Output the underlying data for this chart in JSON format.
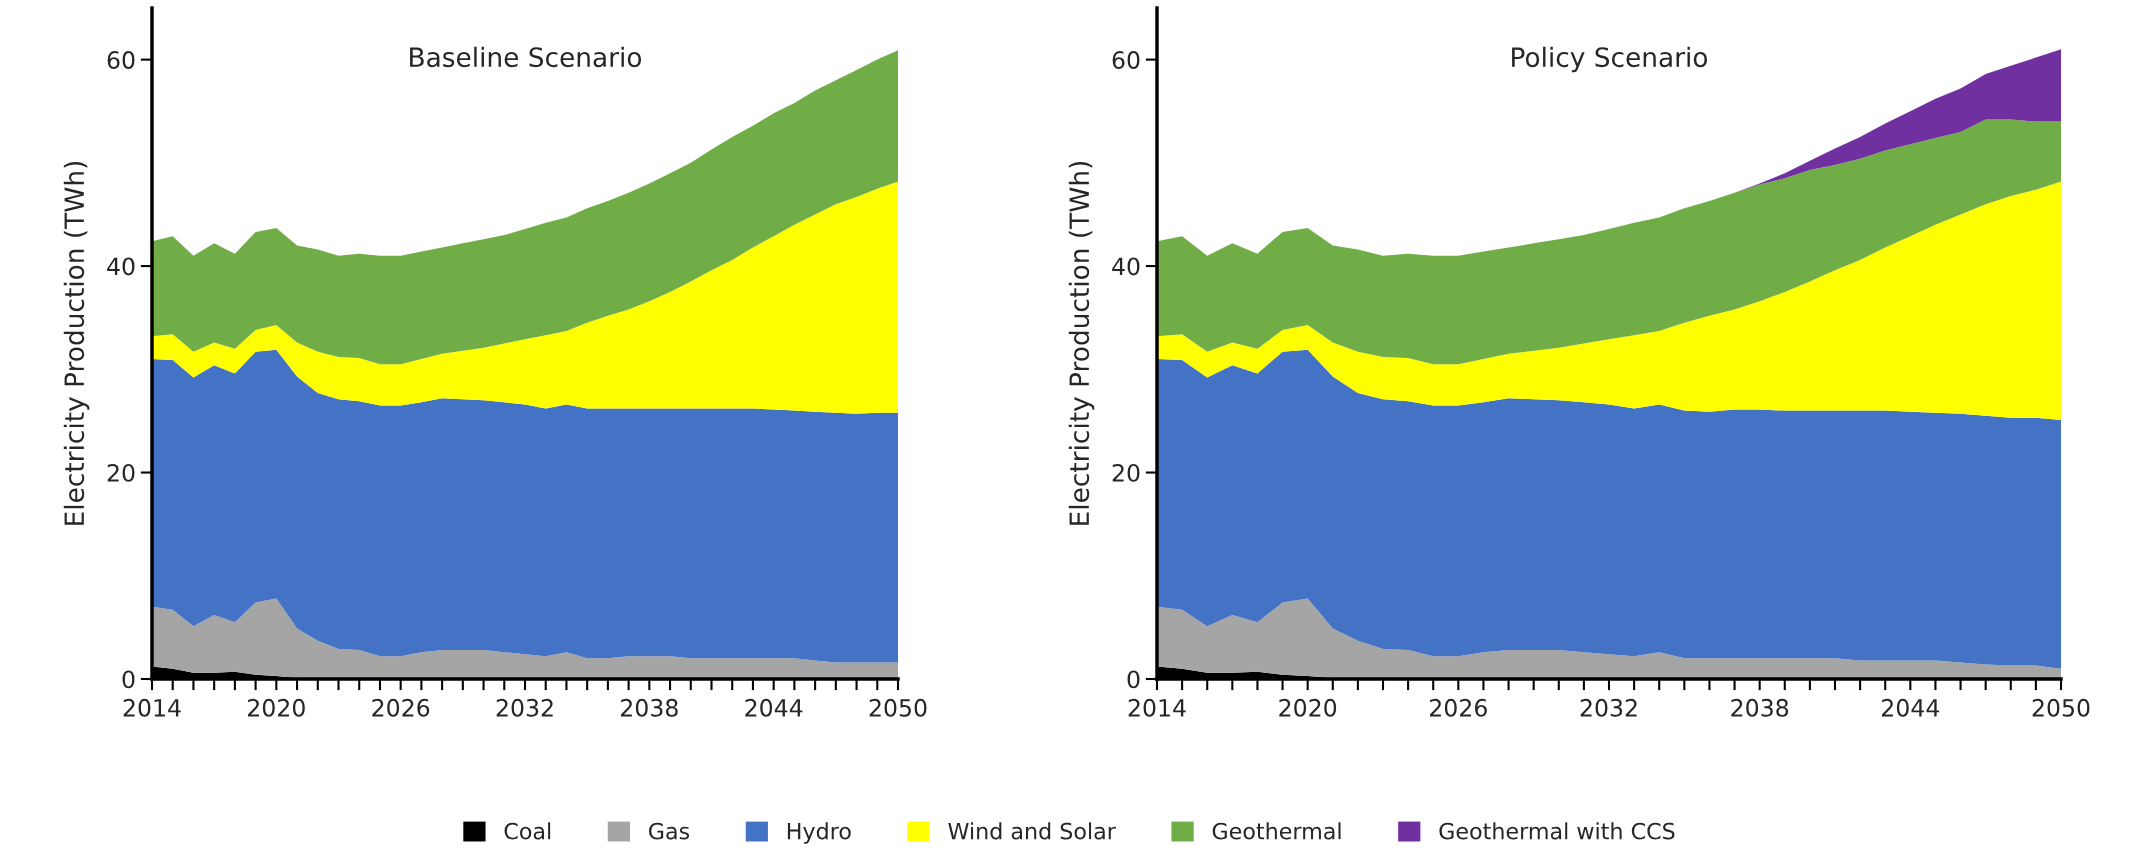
{
  "chart_data": [
    {
      "type": "area",
      "stacked": true,
      "title": "Baseline Scenario",
      "ylabel": "Electricity Production (TWh)",
      "legend": "bottom",
      "x": [
        2014,
        2015,
        2016,
        2017,
        2018,
        2019,
        2020,
        2021,
        2022,
        2023,
        2024,
        2025,
        2026,
        2027,
        2028,
        2029,
        2030,
        2031,
        2032,
        2033,
        2034,
        2035,
        2036,
        2037,
        2038,
        2039,
        2040,
        2041,
        2042,
        2043,
        2044,
        2045,
        2046,
        2047,
        2048,
        2049,
        2050
      ],
      "xlim": [
        2014,
        2050
      ],
      "xticks": [
        2014,
        {
          "value": 2015,
          "label": null
        },
        {
          "value": 2016,
          "label": null
        },
        {
          "value": 2017,
          "label": null
        },
        {
          "value": 2018,
          "label": null
        },
        {
          "value": 2019,
          "label": null
        },
        2020,
        {
          "value": 2021,
          "label": null
        },
        {
          "value": 2022,
          "label": null
        },
        {
          "value": 2023,
          "label": null
        },
        {
          "value": 2024,
          "label": null
        },
        {
          "value": 2025,
          "label": null
        },
        2026,
        {
          "value": 2027,
          "label": null
        },
        {
          "value": 2028,
          "label": null
        },
        {
          "value": 2029,
          "label": null
        },
        {
          "value": 2030,
          "label": null
        },
        {
          "value": 2031,
          "label": null
        },
        2032,
        {
          "value": 2033,
          "label": null
        },
        {
          "value": 2034,
          "label": null
        },
        {
          "value": 2035,
          "label": null
        },
        {
          "value": 2036,
          "label": null
        },
        {
          "value": 2037,
          "label": null
        },
        2038,
        {
          "value": 2039,
          "label": null
        },
        {
          "value": 2040,
          "label": null
        },
        {
          "value": 2041,
          "label": null
        },
        {
          "value": 2042,
          "label": null
        },
        {
          "value": 2043,
          "label": null
        },
        2044,
        {
          "value": 2045,
          "label": null
        },
        {
          "value": 2046,
          "label": null
        },
        {
          "value": 2047,
          "label": null
        },
        {
          "value": 2048,
          "label": null
        },
        {
          "value": 2049,
          "label": null
        },
        2050
      ],
      "ylim": [
        0,
        65
      ],
      "yticks": [
        0,
        20,
        40,
        60
      ],
      "series": [
        {
          "name": "Coal",
          "color": "#000000",
          "values": [
            1.2,
            1.0,
            0.6,
            0.6,
            0.7,
            0.4,
            0.3,
            0.1,
            0,
            0,
            0,
            0,
            0,
            0,
            0,
            0,
            0,
            0,
            0,
            0,
            0,
            0,
            0,
            0,
            0,
            0,
            0,
            0,
            0,
            0,
            0,
            0,
            0,
            0,
            0,
            0,
            0
          ]
        },
        {
          "name": "Gas",
          "color": "#a5a5a5",
          "values": [
            5.8,
            5.7,
            4.5,
            5.6,
            4.8,
            7.0,
            7.5,
            4.8,
            3.7,
            2.9,
            2.8,
            2.2,
            2.2,
            2.6,
            2.8,
            2.8,
            2.8,
            2.6,
            2.4,
            2.2,
            2.6,
            2.0,
            2.0,
            2.2,
            2.2,
            2.2,
            2.0,
            2.0,
            2.0,
            2.0,
            2.0,
            2.0,
            1.8,
            1.6,
            1.6,
            1.6,
            1.6
          ]
        },
        {
          "name": "Hydro",
          "color": "#4472c4",
          "values": [
            24.0,
            24.2,
            24.1,
            24.2,
            24.1,
            24.3,
            24.1,
            24.4,
            24.0,
            24.2,
            24.1,
            24.3,
            24.3,
            24.2,
            24.4,
            24.3,
            24.2,
            24.2,
            24.2,
            24.0,
            24.0,
            24.2,
            24.2,
            24.0,
            24.0,
            24.0,
            24.2,
            24.2,
            24.2,
            24.2,
            24.1,
            24.0,
            24.1,
            24.2,
            24.1,
            24.2,
            24.2
          ]
        },
        {
          "name": "Wind and Solar",
          "color": "#ffff00",
          "values": [
            2.2,
            2.5,
            2.5,
            2.2,
            2.4,
            2.1,
            2.4,
            3.3,
            4.0,
            4.1,
            4.2,
            4.0,
            4.0,
            4.2,
            4.3,
            4.7,
            5.1,
            5.7,
            6.3,
            7.1,
            7.1,
            8.3,
            9.0,
            9.6,
            10.4,
            11.3,
            12.3,
            13.4,
            14.4,
            15.6,
            16.8,
            18.0,
            19.1,
            20.2,
            21.0,
            21.7,
            22.4
          ]
        },
        {
          "name": "Geothermal",
          "color": "#70ad47",
          "values": [
            9.2,
            9.5,
            9.3,
            9.6,
            9.2,
            9.5,
            9.4,
            9.4,
            9.9,
            9.8,
            10.1,
            10.5,
            10.5,
            10.4,
            10.3,
            10.4,
            10.5,
            10.5,
            10.7,
            10.9,
            11.0,
            11.1,
            11.1,
            11.3,
            11.4,
            11.5,
            11.5,
            11.7,
            11.9,
            11.8,
            11.9,
            11.8,
            12.0,
            12.0,
            12.3,
            12.5,
            12.7
          ]
        }
      ]
    },
    {
      "type": "area",
      "stacked": true,
      "title": "Policy Scenario",
      "ylabel": "Electricity Production (TWh)",
      "legend": "bottom",
      "x": [
        2014,
        2015,
        2016,
        2017,
        2018,
        2019,
        2020,
        2021,
        2022,
        2023,
        2024,
        2025,
        2026,
        2027,
        2028,
        2029,
        2030,
        2031,
        2032,
        2033,
        2034,
        2035,
        2036,
        2037,
        2038,
        2039,
        2040,
        2041,
        2042,
        2043,
        2044,
        2045,
        2046,
        2047,
        2048,
        2049,
        2050
      ],
      "xlim": [
        2014,
        2050
      ],
      "xticks": [
        2014,
        {
          "value": 2015,
          "label": null
        },
        {
          "value": 2016,
          "label": null
        },
        {
          "value": 2017,
          "label": null
        },
        {
          "value": 2018,
          "label": null
        },
        {
          "value": 2019,
          "label": null
        },
        2020,
        {
          "value": 2021,
          "label": null
        },
        {
          "value": 2022,
          "label": null
        },
        {
          "value": 2023,
          "label": null
        },
        {
          "value": 2024,
          "label": null
        },
        {
          "value": 2025,
          "label": null
        },
        2026,
        {
          "value": 2027,
          "label": null
        },
        {
          "value": 2028,
          "label": null
        },
        {
          "value": 2029,
          "label": null
        },
        {
          "value": 2030,
          "label": null
        },
        {
          "value": 2031,
          "label": null
        },
        2032,
        {
          "value": 2033,
          "label": null
        },
        {
          "value": 2034,
          "label": null
        },
        {
          "value": 2035,
          "label": null
        },
        {
          "value": 2036,
          "label": null
        },
        {
          "value": 2037,
          "label": null
        },
        2038,
        {
          "value": 2039,
          "label": null
        },
        {
          "value": 2040,
          "label": null
        },
        {
          "value": 2041,
          "label": null
        },
        {
          "value": 2042,
          "label": null
        },
        {
          "value": 2043,
          "label": null
        },
        2044,
        {
          "value": 2045,
          "label": null
        },
        {
          "value": 2046,
          "label": null
        },
        {
          "value": 2047,
          "label": null
        },
        {
          "value": 2048,
          "label": null
        },
        {
          "value": 2049,
          "label": null
        },
        2050
      ],
      "ylim": [
        0,
        65
      ],
      "yticks": [
        0,
        20,
        40,
        60
      ],
      "series": [
        {
          "name": "Coal",
          "color": "#000000",
          "values": [
            1.2,
            1.0,
            0.6,
            0.6,
            0.7,
            0.4,
            0.3,
            0.1,
            0,
            0,
            0,
            0,
            0,
            0,
            0,
            0,
            0,
            0,
            0,
            0,
            0,
            0,
            0,
            0,
            0,
            0,
            0,
            0,
            0,
            0,
            0,
            0,
            0,
            0,
            0,
            0,
            0
          ]
        },
        {
          "name": "Gas",
          "color": "#a5a5a5",
          "values": [
            5.8,
            5.7,
            4.5,
            5.6,
            4.8,
            7.0,
            7.5,
            4.8,
            3.7,
            2.9,
            2.8,
            2.2,
            2.2,
            2.6,
            2.8,
            2.8,
            2.8,
            2.6,
            2.4,
            2.2,
            2.6,
            2.0,
            2.0,
            2.0,
            2.0,
            2.0,
            2.0,
            2.0,
            1.8,
            1.8,
            1.8,
            1.8,
            1.6,
            1.4,
            1.3,
            1.3,
            1.0
          ]
        },
        {
          "name": "Hydro",
          "color": "#4472c4",
          "values": [
            24.0,
            24.2,
            24.1,
            24.2,
            24.1,
            24.3,
            24.1,
            24.4,
            24.0,
            24.2,
            24.1,
            24.3,
            24.3,
            24.2,
            24.4,
            24.3,
            24.2,
            24.2,
            24.2,
            24.0,
            24.0,
            24.0,
            23.9,
            24.1,
            24.1,
            24.0,
            24.0,
            24.0,
            24.2,
            24.2,
            24.1,
            24.0,
            24.1,
            24.1,
            24.0,
            24.0,
            24.1
          ]
        },
        {
          "name": "Wind and Solar",
          "color": "#ffff00",
          "values": [
            2.2,
            2.5,
            2.5,
            2.2,
            2.4,
            2.1,
            2.4,
            3.3,
            4.0,
            4.1,
            4.2,
            4.0,
            4.0,
            4.2,
            4.3,
            4.7,
            5.1,
            5.7,
            6.3,
            7.1,
            7.1,
            8.5,
            9.3,
            9.7,
            10.5,
            11.5,
            12.5,
            13.6,
            14.6,
            15.8,
            17.0,
            18.2,
            19.3,
            20.5,
            21.5,
            22.1,
            23.1
          ]
        },
        {
          "name": "Geothermal",
          "color": "#70ad47",
          "values": [
            9.2,
            9.5,
            9.3,
            9.6,
            9.2,
            9.5,
            9.4,
            9.4,
            9.9,
            9.8,
            10.1,
            10.5,
            10.5,
            10.4,
            10.3,
            10.4,
            10.5,
            10.5,
            10.7,
            10.9,
            11.0,
            11.1,
            11.1,
            11.3,
            11.3,
            11.0,
            10.8,
            10.2,
            9.8,
            9.4,
            8.9,
            8.4,
            8.0,
            8.2,
            7.4,
            6.6,
            5.8
          ]
        },
        {
          "name": "Geothermal with CCS",
          "color": "#7030a0",
          "values": [
            0,
            0,
            0,
            0,
            0,
            0,
            0,
            0,
            0,
            0,
            0,
            0,
            0,
            0,
            0,
            0,
            0,
            0,
            0,
            0,
            0,
            0,
            0,
            0,
            0.1,
            0.5,
            0.9,
            1.6,
            2.1,
            2.6,
            3.2,
            3.8,
            4.2,
            4.4,
            5.2,
            6.2,
            7.0
          ]
        }
      ]
    }
  ]
}
